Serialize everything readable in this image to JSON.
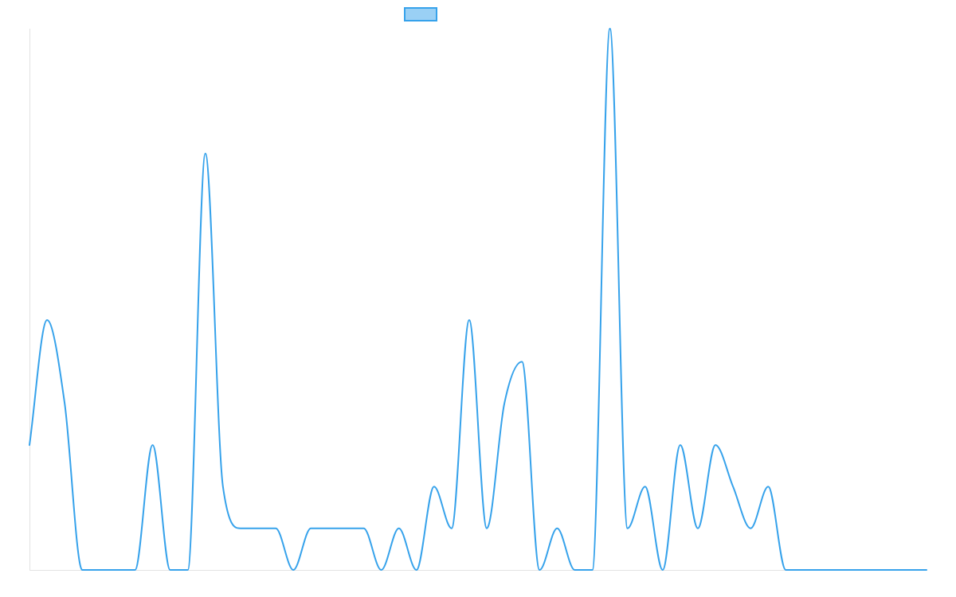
{
  "chart_data": {
    "type": "line",
    "title": "",
    "xlabel": "",
    "ylabel": "",
    "x": [
      0,
      1,
      2,
      3,
      4,
      5,
      6,
      7,
      8,
      9,
      10,
      11,
      12,
      13,
      14,
      15,
      16,
      17,
      18,
      19,
      20,
      21,
      22,
      23,
      24,
      25,
      26,
      27,
      28,
      29,
      30,
      31,
      32,
      33,
      34,
      35,
      36,
      37,
      38,
      39,
      40,
      41,
      42,
      43,
      44,
      45,
      46,
      47,
      48,
      49,
      50,
      51
    ],
    "ylim": [
      0,
      13
    ],
    "grid": false,
    "legend": {
      "position": "top-center",
      "show_swatch": true
    },
    "series": [
      {
        "name": "",
        "color": "#36a2eb",
        "fill": "#9ad0f5",
        "values": [
          3,
          6,
          4,
          0,
          0,
          0,
          0,
          3,
          0,
          0,
          10,
          2,
          1,
          1,
          1,
          0,
          1,
          1,
          1,
          1,
          0,
          1,
          0,
          2,
          1,
          6,
          1,
          4,
          5,
          0,
          1,
          0,
          0,
          13,
          1,
          2,
          0,
          3,
          1,
          3,
          2,
          1,
          2,
          0,
          0,
          0,
          0,
          0,
          0,
          0,
          0,
          0
        ]
      }
    ]
  }
}
